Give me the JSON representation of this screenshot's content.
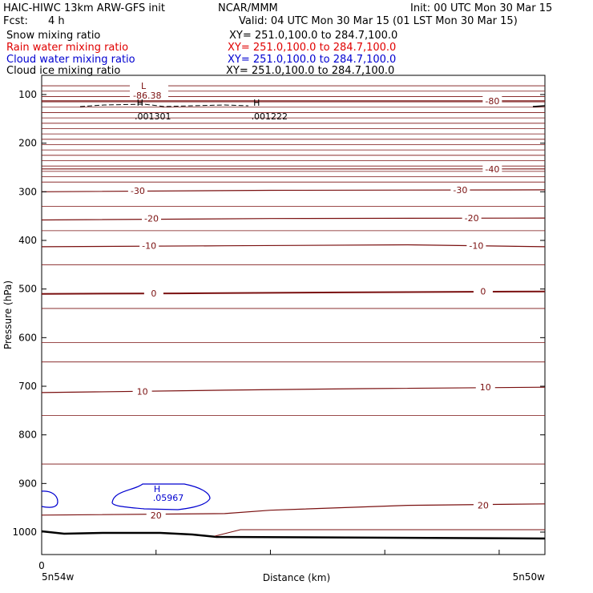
{
  "header": {
    "model": "HAIC-HIWC 13km ARW-GFS init",
    "org": "NCAR/MMM",
    "init": "Init: 00 UTC Mon 30 Mar 15",
    "fcst_label": "Fcst:",
    "fcst_value": "4 h",
    "valid": "Valid: 04 UTC Mon 30 Mar 15 (01 LST Mon 30 Mar 15)"
  },
  "fields": [
    {
      "name": "Snow mixing ratio",
      "xy": "XY= 251.0,100.0 to 284.7,100.0",
      "color": "#000000"
    },
    {
      "name": "Rain water mixing ratio",
      "xy": "XY= 251.0,100.0 to 284.7,100.0",
      "color": "#e00000"
    },
    {
      "name": "Cloud water mixing ratio",
      "xy": "XY= 251.0,100.0 to 284.7,100.0",
      "color": "#0000d0"
    },
    {
      "name": "Cloud ice mixing ratio",
      "xy": "XY= 251.0,100.0 to 284.7,100.0",
      "color": "#000000"
    }
  ],
  "colors": {
    "temperature": "#7a1010",
    "cloud_water": "#0000d0",
    "ice": "#000000",
    "terrain": "#000000"
  },
  "chart_data": {
    "type": "line",
    "title": "",
    "xlabel": "Distance (km)",
    "ylabel": "Pressure (hPa)",
    "y_reversed": true,
    "ylim": [
      1050,
      75
    ],
    "xlim": [
      0,
      220
    ],
    "y_ticks": [
      100,
      200,
      300,
      400,
      500,
      600,
      700,
      800,
      900,
      1000
    ],
    "x_ticks": [
      0,
      50,
      100,
      150,
      200
    ],
    "x_tick_labels": [
      "0",
      "",
      "",
      "",
      ""
    ],
    "x_end_labels": [
      "5n54w",
      "5n50w"
    ],
    "temperature_contours": [
      {
        "level": "-80",
        "points": [
          [
            0,
            113
          ],
          [
            220,
            113
          ]
        ],
        "label_at": [
          197,
          113
        ]
      },
      {
        "level": "-40",
        "points": [
          [
            0,
            253
          ],
          [
            220,
            253
          ]
        ],
        "label_at": [
          197,
          253
        ]
      },
      {
        "level": "-30",
        "points": [
          [
            0,
            300
          ],
          [
            100,
            297
          ],
          [
            220,
            296
          ]
        ],
        "label_at": [
          42,
          298
        ]
      },
      {
        "level": "-30",
        "points": [],
        "label_at": [
          183,
          296
        ]
      },
      {
        "level": "-20",
        "points": [
          [
            0,
            358
          ],
          [
            100,
            355
          ],
          [
            220,
            354
          ]
        ],
        "label_at": [
          48,
          355
        ]
      },
      {
        "level": "-20",
        "points": [],
        "label_at": [
          188,
          354
        ]
      },
      {
        "level": "-10",
        "points": [
          [
            0,
            413
          ],
          [
            80,
            411
          ],
          [
            160,
            409
          ],
          [
            220,
            413
          ]
        ],
        "label_at": [
          47,
          411
        ]
      },
      {
        "level": "-10",
        "points": [],
        "label_at": [
          190,
          411
        ]
      },
      {
        "level": "0",
        "points": [
          [
            0,
            510
          ],
          [
            60,
            509
          ],
          [
            130,
            507
          ],
          [
            220,
            505
          ]
        ],
        "label_at": [
          49,
          509
        ]
      },
      {
        "level": "0",
        "points": [],
        "label_at": [
          193,
          505
        ]
      },
      {
        "level": "10",
        "points": [
          [
            0,
            713
          ],
          [
            80,
            708
          ],
          [
            140,
            705
          ],
          [
            220,
            702
          ]
        ],
        "label_at": [
          44,
          711
        ]
      },
      {
        "level": "10",
        "points": [],
        "label_at": [
          194,
          702
        ]
      },
      {
        "level": "20",
        "points": [
          [
            0,
            965
          ],
          [
            80,
            962
          ],
          [
            100,
            955
          ],
          [
            160,
            945
          ],
          [
            220,
            942
          ]
        ],
        "label_at": [
          50,
          965
        ]
      },
      {
        "level": "20",
        "points": [],
        "label_at": [
          193,
          945
        ]
      }
    ],
    "ice_extremes": [
      {
        "type": "H",
        "value": ".001301",
        "x": 43,
        "y": 123
      },
      {
        "type": "H",
        "value": ".001222",
        "x": 94,
        "y": 123
      }
    ],
    "cloud_water_extremes": [
      {
        "type": "H",
        "value": ".05967",
        "x": 52,
        "y": 950
      }
    ],
    "temp_min": {
      "type": "L",
      "value": "-86.38",
      "x": 43,
      "y": 90
    }
  }
}
